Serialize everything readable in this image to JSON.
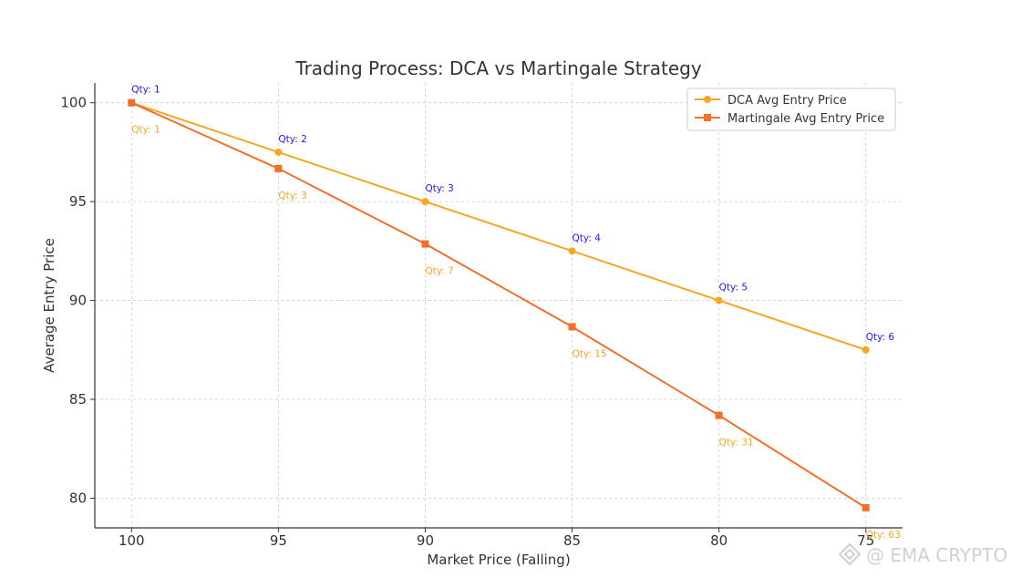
{
  "chart_data": {
    "type": "line",
    "title": "Trading Process: DCA vs Martingale Strategy",
    "xlabel": "Market Price (Falling)",
    "ylabel": "Average Entry Price",
    "x": [
      100,
      95,
      90,
      85,
      80,
      75
    ],
    "x_tick_labels": [
      "100",
      "95",
      "90",
      "85",
      "80",
      "75"
    ],
    "xlim": [
      101.25,
      73.75
    ],
    "ylim": [
      78.5,
      101
    ],
    "y_ticks": [
      80,
      85,
      90,
      95,
      100
    ],
    "y_tick_labels": [
      "80",
      "85",
      "90",
      "95",
      "100"
    ],
    "grid": true,
    "legend_position": "top-right",
    "series": [
      {
        "name": "DCA Avg Entry Price",
        "marker": "circle",
        "color": "#f5a623",
        "values": [
          100,
          97.5,
          95,
          92.5,
          90,
          87.5
        ],
        "annotations": [
          "Qty: 1",
          "Qty: 2",
          "Qty: 3",
          "Qty: 4",
          "Qty: 5",
          "Qty: 6"
        ],
        "annotation_color": "#1a1aff"
      },
      {
        "name": "Martingale Avg Entry Price",
        "marker": "square",
        "color": "#f07028",
        "values": [
          100,
          96.67,
          92.86,
          88.67,
          84.19,
          79.52
        ],
        "annotations": [
          "Qty: 1",
          "Qty: 3",
          "Qty: 7",
          "Qty: 15",
          "Qty: 31",
          "Qty: 63"
        ],
        "annotation_color": "#f5a623"
      }
    ]
  },
  "watermark": {
    "text": "@ EMA CRYPTO",
    "icon": "diamond-logo-icon"
  }
}
